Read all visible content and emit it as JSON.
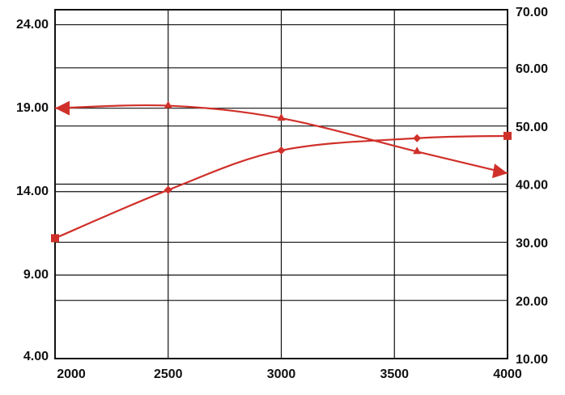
{
  "chart_data": {
    "type": "line",
    "x": [
      2000,
      2500,
      3000,
      3600,
      4000
    ],
    "series": [
      {
        "color": "#d0302a",
        "values": [
          19.0,
          19.15,
          18.4,
          16.4,
          15.1
        ],
        "axis": "y"
      },
      {
        "color": "#d0302a",
        "values": [
          30.7,
          39.0,
          45.8,
          47.9,
          48.3
        ],
        "axis": "y2"
      }
    ],
    "xlim": [
      2000,
      4000
    ],
    "xticks": [
      2000,
      2500,
      3000,
      3500,
      4000
    ],
    "ylim": [
      4,
      24.9
    ],
    "yticks": [
      {
        "value": 4,
        "label": "4.00"
      },
      {
        "value": 9,
        "label": "9.00"
      },
      {
        "value": 14,
        "label": "14.00"
      },
      {
        "value": 19,
        "label": "19.00"
      },
      {
        "value": 24,
        "label": "24.00"
      }
    ],
    "y2lim": [
      10,
      70
    ],
    "y2ticks": [
      {
        "value": 10,
        "label": "10.00"
      },
      {
        "value": 20,
        "label": "20.00"
      },
      {
        "value": 30,
        "label": "30.00"
      },
      {
        "value": 40,
        "label": "40.00"
      },
      {
        "value": 50,
        "label": "50.00"
      },
      {
        "value": 60,
        "label": "60.00"
      },
      {
        "value": 70,
        "label": "70.00"
      }
    ],
    "grid": true
  }
}
